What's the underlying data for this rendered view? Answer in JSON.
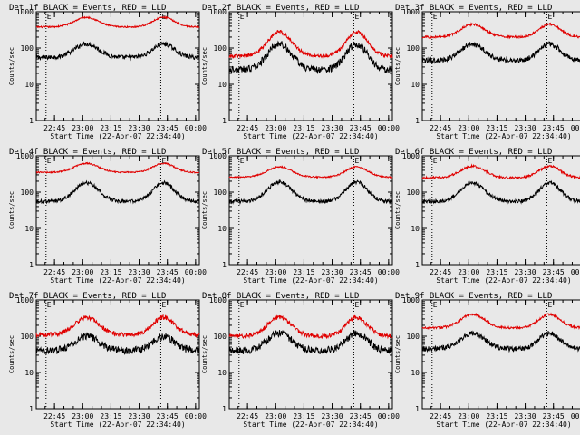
{
  "figure": {
    "background": "#e8e8e8",
    "axis_color": "#000000",
    "series_colors": {
      "events": "#000000",
      "lld": "#e00000"
    },
    "xlabel": "Start Time (22-Apr-07 22:34:40)",
    "ylabel": "Counts/sec",
    "x_tick_labels": [
      "22:45",
      "23:00",
      "23:15",
      "23:30",
      "23:45",
      "00:00"
    ],
    "y_tick_labels": [
      "1",
      "10",
      "100",
      "1000"
    ],
    "event_marker": "E"
  },
  "chart_data": [
    {
      "type": "line",
      "title": "Det 1f BLACK = Events, RED = LLD",
      "ylim": [
        1,
        1000
      ],
      "yscale": "log",
      "xlim_min": [
        5.3,
        92
      ],
      "vlines_min": [
        10.5,
        71.5
      ],
      "events_marker_min": [
        10.5,
        71.5
      ],
      "series": [
        {
          "name": "Events",
          "base": 55,
          "peak": 130,
          "noise": 0.06
        },
        {
          "name": "LLD",
          "base": 380,
          "peak": 700,
          "noise": 0.02
        }
      ]
    },
    {
      "type": "line",
      "title": "Det 2f BLACK = Events, RED = LLD",
      "ylim": [
        1,
        1000
      ],
      "yscale": "log",
      "xlim_min": [
        5.3,
        92
      ],
      "vlines_min": [
        10.5,
        71.5
      ],
      "events_marker_min": [
        10.5,
        71.5
      ],
      "series": [
        {
          "name": "Events",
          "base": 25,
          "peak": 130,
          "noise": 0.1
        },
        {
          "name": "LLD",
          "base": 60,
          "peak": 280,
          "noise": 0.05
        }
      ]
    },
    {
      "type": "line",
      "title": "Det 3f BLACK = Events, RED = LLD",
      "ylim": [
        1,
        1000
      ],
      "yscale": "log",
      "xlim_min": [
        5.3,
        92
      ],
      "vlines_min": [
        10.5,
        71.5
      ],
      "events_marker_min": [
        10.5,
        71.5
      ],
      "series": [
        {
          "name": "Events",
          "base": 45,
          "peak": 130,
          "noise": 0.07
        },
        {
          "name": "LLD",
          "base": 200,
          "peak": 450,
          "noise": 0.03
        }
      ]
    },
    {
      "type": "line",
      "title": "Det 4f BLACK = Events, RED = LLD",
      "ylim": [
        1,
        1000
      ],
      "yscale": "log",
      "xlim_min": [
        5.3,
        92
      ],
      "vlines_min": [
        10.5,
        71.5
      ],
      "events_marker_min": [
        10.5,
        71.5
      ],
      "series": [
        {
          "name": "Events",
          "base": 55,
          "peak": 180,
          "noise": 0.05
        },
        {
          "name": "LLD",
          "base": 350,
          "peak": 620,
          "noise": 0.02
        }
      ]
    },
    {
      "type": "line",
      "title": "Det 5f BLACK = Events, RED = LLD",
      "ylim": [
        1,
        1000
      ],
      "yscale": "log",
      "xlim_min": [
        5.3,
        92
      ],
      "vlines_min": [
        10.5,
        71.5
      ],
      "events_marker_min": [
        10.5,
        71.5
      ],
      "series": [
        {
          "name": "Events",
          "base": 55,
          "peak": 190,
          "noise": 0.05
        },
        {
          "name": "LLD",
          "base": 260,
          "peak": 500,
          "noise": 0.02
        }
      ]
    },
    {
      "type": "line",
      "title": "Det 6f BLACK = Events, RED = LLD",
      "ylim": [
        1,
        1000
      ],
      "yscale": "log",
      "xlim_min": [
        5.3,
        92
      ],
      "vlines_min": [
        10.5,
        71.5
      ],
      "events_marker_min": [
        10.5,
        71.5
      ],
      "series": [
        {
          "name": "Events",
          "base": 55,
          "peak": 180,
          "noise": 0.05
        },
        {
          "name": "LLD",
          "base": 250,
          "peak": 520,
          "noise": 0.03
        }
      ]
    },
    {
      "type": "line",
      "title": "Det 7f BLACK = Events, RED = LLD",
      "ylim": [
        1,
        1000
      ],
      "yscale": "log",
      "xlim_min": [
        5.3,
        92
      ],
      "vlines_min": [
        10.5,
        71.5
      ],
      "events_marker_min": [
        10.5,
        71.5
      ],
      "series": [
        {
          "name": "Events",
          "base": 40,
          "peak": 100,
          "noise": 0.1
        },
        {
          "name": "LLD",
          "base": 110,
          "peak": 330,
          "noise": 0.06
        }
      ]
    },
    {
      "type": "line",
      "title": "Det 8f BLACK = Events, RED = LLD",
      "ylim": [
        1,
        1000
      ],
      "yscale": "log",
      "xlim_min": [
        5.3,
        92
      ],
      "vlines_min": [
        10.5,
        71.5
      ],
      "events_marker_min": [
        10.5,
        71.5
      ],
      "series": [
        {
          "name": "Events",
          "base": 40,
          "peak": 120,
          "noise": 0.1
        },
        {
          "name": "LLD",
          "base": 100,
          "peak": 330,
          "noise": 0.06
        }
      ]
    },
    {
      "type": "line",
      "title": "Det 9f BLACK = Events, RED = LLD",
      "ylim": [
        1,
        1000
      ],
      "yscale": "log",
      "xlim_min": [
        5.3,
        92
      ],
      "vlines_min": [
        10.5,
        71.5
      ],
      "events_marker_min": [
        10.5,
        71.5
      ],
      "series": [
        {
          "name": "Events",
          "base": 45,
          "peak": 120,
          "noise": 0.07
        },
        {
          "name": "LLD",
          "base": 170,
          "peak": 400,
          "noise": 0.03
        }
      ]
    }
  ]
}
